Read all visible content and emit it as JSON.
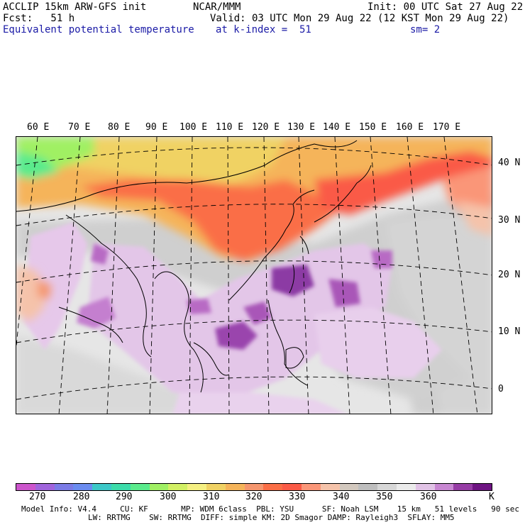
{
  "header": {
    "line1_left": "ACCLIP 15km ARW-GFS init",
    "line1_center": "NCAR/MMM",
    "line1_right": "Init: 00 UTC Sat 27 Aug 22",
    "line2_left": "Fcst:   51 h",
    "line2_right": "Valid: 03 UTC Mon 29 Aug 22 (12 KST Mon 29 Aug 22)",
    "line3_left": "Equivalent potential temperature",
    "line3_center": "at k-index =  51",
    "line3_right": "sm= 2"
  },
  "map": {
    "lon_labels": [
      "60 E",
      "70 E",
      "80 E",
      "90 E",
      "100 E",
      "110 E",
      "120 E",
      "130 E",
      "140 E",
      "150 E",
      "160 E",
      "170 E"
    ],
    "lat_labels": [
      "40 N",
      "30 N",
      "20 N",
      "10 N",
      "0"
    ]
  },
  "colorbar": {
    "colors": [
      "#cc55cc",
      "#a064dc",
      "#7b7be6",
      "#6b8cf0",
      "#3cc8c8",
      "#3cdcaa",
      "#5aeb8c",
      "#a0f064",
      "#d2f064",
      "#f5f082",
      "#f0d264",
      "#f5b45a",
      "#f5966e",
      "#fa6e46",
      "#fa5a46",
      "#fa9678",
      "#f5c3aa",
      "#d2c8be",
      "#bebebe",
      "#d7d7d7",
      "#ebebeb",
      "#e1c3e6",
      "#c887d2",
      "#963ca5",
      "#6e1482"
    ],
    "labels": [
      "270",
      "280",
      "290",
      "300",
      "310",
      "320",
      "330",
      "340",
      "350",
      "360"
    ],
    "unit": "K"
  },
  "footer": {
    "line1": "Model Info: V4.4     CU: KF       MP: WDM 6class  PBL: YSU      SF: Noah LSM    15 km   51 levels   90 sec",
    "line2": "LW: RRTMG    SW: RRTMG  DIFF: simple KM: 2D Smagor DAMP: Rayleigh3  SFLAY: MM5"
  }
}
